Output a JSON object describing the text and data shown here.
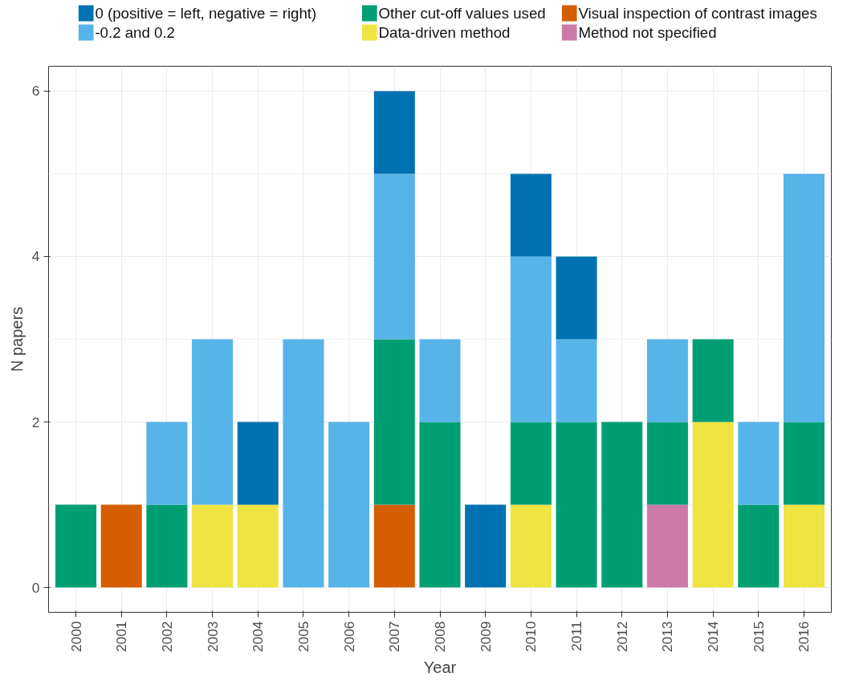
{
  "chart_data": {
    "type": "bar",
    "stacked": true,
    "xlabel": "Year",
    "ylabel": "N papers",
    "categories": [
      "2000",
      "2001",
      "2002",
      "2003",
      "2004",
      "2005",
      "2006",
      "2007",
      "2008",
      "2009",
      "2010",
      "2011",
      "2012",
      "2013",
      "2014",
      "2015",
      "2016"
    ],
    "series": [
      {
        "name": "Method not specified",
        "color": "#cc79a7",
        "values": [
          null,
          null,
          null,
          null,
          null,
          null,
          null,
          null,
          null,
          null,
          null,
          null,
          null,
          1,
          null,
          null,
          null
        ]
      },
      {
        "name": "Visual inspection of contrast images",
        "color": "#d55e00",
        "values": [
          null,
          1,
          null,
          null,
          null,
          null,
          null,
          1,
          null,
          null,
          null,
          null,
          null,
          null,
          null,
          null,
          null
        ]
      },
      {
        "name": "Data-driven method",
        "color": "#f0e442",
        "values": [
          null,
          null,
          null,
          1,
          1,
          null,
          null,
          null,
          null,
          null,
          1,
          null,
          null,
          null,
          2,
          null,
          1
        ]
      },
      {
        "name": "Other cut-off values used",
        "color": "#009e73",
        "values": [
          1,
          null,
          1,
          null,
          null,
          null,
          null,
          2,
          2,
          null,
          1,
          2,
          2,
          1,
          1,
          1,
          1
        ]
      },
      {
        "name": "-0.2 and 0.2",
        "color": "#56b4e9",
        "values": [
          null,
          null,
          1,
          2,
          null,
          3,
          2,
          2,
          1,
          null,
          2,
          1,
          null,
          1,
          null,
          1,
          3
        ]
      },
      {
        "name": "0 (positive = left, negative = right)",
        "color": "#0072b2",
        "values": [
          null,
          null,
          null,
          null,
          1,
          null,
          null,
          1,
          null,
          1,
          1,
          1,
          null,
          null,
          null,
          null,
          null
        ]
      }
    ],
    "ylim": [
      -0.3,
      6.3
    ],
    "yticks": [
      0,
      2,
      4,
      6
    ],
    "grid": true,
    "legend": "top"
  }
}
